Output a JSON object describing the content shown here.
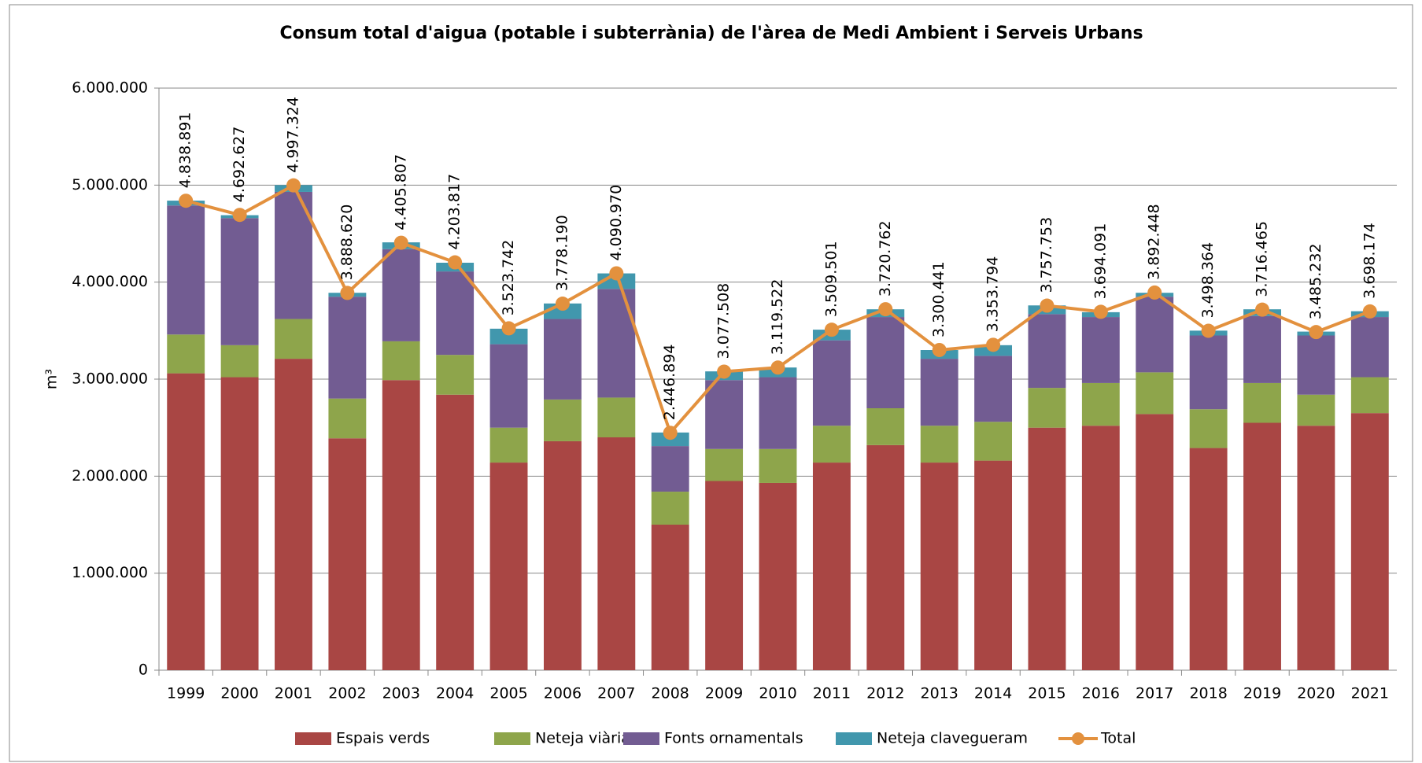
{
  "chart_data": {
    "type": "bar",
    "stacked": true,
    "title": "Consum total d'aigua (potable i subterrània) de l'àrea de Medi Ambient i Serveis Urbans",
    "y_label": "m³",
    "categories": [
      "1999",
      "2000",
      "2001",
      "2002",
      "2003",
      "2004",
      "2005",
      "2006",
      "2007",
      "2008",
      "2009",
      "2010",
      "2011",
      "2012",
      "2013",
      "2014",
      "2015",
      "2016",
      "2017",
      "2018",
      "2019",
      "2020",
      "2021"
    ],
    "series": [
      {
        "name": "Espais verds",
        "color": "#a94644",
        "values": [
          3060000,
          3020000,
          3210000,
          2390000,
          2990000,
          2840000,
          2140000,
          2360000,
          2400000,
          1500000,
          1950000,
          1930000,
          2140000,
          2320000,
          2140000,
          2160000,
          2500000,
          2520000,
          2640000,
          2290000,
          2550000,
          2520000,
          2650000
        ]
      },
      {
        "name": "Neteja viària",
        "color": "#8ea54b",
        "values": [
          400000,
          330000,
          410000,
          410000,
          400000,
          410000,
          360000,
          430000,
          410000,
          340000,
          330000,
          350000,
          380000,
          380000,
          380000,
          400000,
          410000,
          440000,
          430000,
          400000,
          410000,
          320000,
          370000
        ]
      },
      {
        "name": "Fonts ornamentals",
        "color": "#725c92",
        "values": [
          1330000,
          1310000,
          1310000,
          1050000,
          950000,
          860000,
          860000,
          830000,
          1120000,
          470000,
          710000,
          740000,
          880000,
          940000,
          690000,
          680000,
          760000,
          680000,
          780000,
          760000,
          690000,
          610000,
          620000
        ]
      },
      {
        "name": "Neteja clavegueram",
        "color": "#4197ad",
        "values": [
          50000,
          30000,
          70000,
          40000,
          70000,
          90000,
          160000,
          160000,
          160000,
          140000,
          90000,
          100000,
          110000,
          80000,
          90000,
          110000,
          90000,
          50000,
          40000,
          50000,
          70000,
          40000,
          60000
        ]
      },
      {
        "name": "Total",
        "type": "line",
        "color": "#e3913e",
        "values": [
          4838891,
          4692627,
          4997324,
          3888620,
          4405807,
          4203817,
          3523742,
          3778190,
          4090970,
          2446894,
          3077508,
          3119522,
          3509501,
          3720762,
          3300441,
          3353794,
          3757753,
          3694091,
          3892448,
          3498364,
          3716465,
          3485232,
          3698174
        ],
        "value_labels": [
          "4.838.891",
          "4.692.627",
          "4.997.324",
          "3.888.620",
          "4.405.807",
          "4.203.817",
          "3.523.742",
          "3.778.190",
          "4.090.970",
          "2.446.894",
          "3.077.508",
          "3.119.522",
          "3.509.501",
          "3.720.762",
          "3.300.441",
          "3.353.794",
          "3.757.753",
          "3.694.091",
          "3.892.448",
          "3.498.364",
          "3.716.465",
          "3.485.232",
          "3.698.174"
        ]
      }
    ],
    "ylim": [
      0,
      6000000
    ],
    "yticks": [
      0,
      {
        "value": 1000000,
        "label": "1.000.000"
      },
      {
        "value": 2000000,
        "label": "2.000.000"
      },
      {
        "value": 3000000,
        "label": "3.000.000"
      },
      {
        "value": 4000000,
        "label": "4.000.000"
      },
      {
        "value": 5000000,
        "label": "5.000.000"
      },
      {
        "value": 6000000,
        "label": "6.000.000"
      }
    ],
    "grid": true,
    "legend": "bottom"
  }
}
